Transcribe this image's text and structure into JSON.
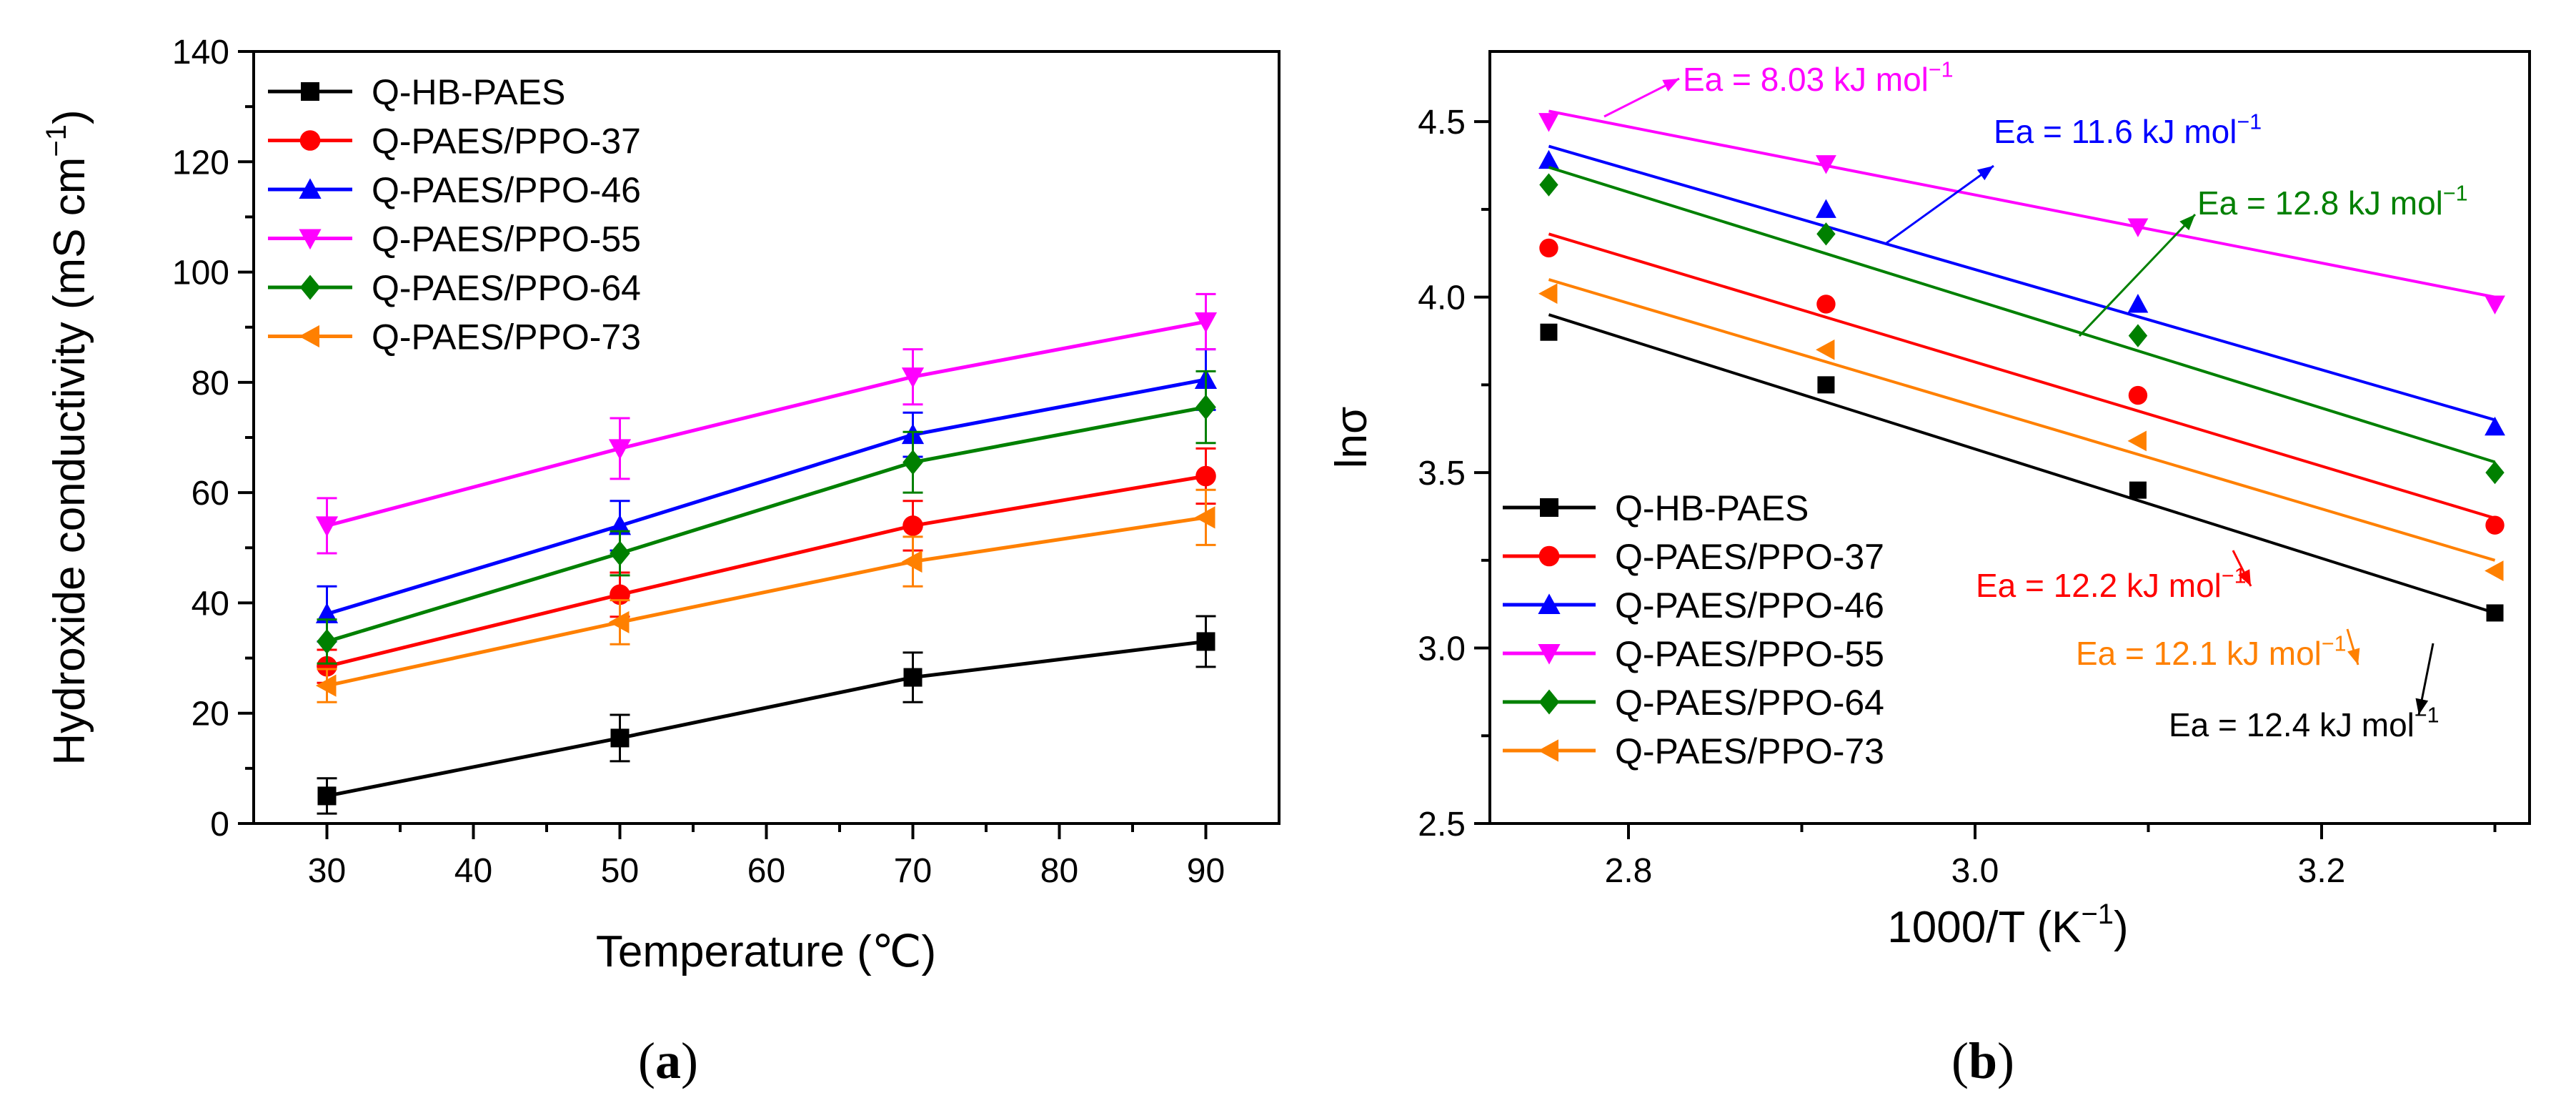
{
  "panels": {
    "a": {
      "label_open": "(",
      "label_letter": "a",
      "label_close": ")"
    },
    "b": {
      "label_open": "(",
      "label_letter": "b",
      "label_close": ")"
    }
  },
  "chart_data": [
    {
      "type": "line",
      "panel": "a",
      "xlabel": "Temperature (℃)",
      "ylabel": "Hydroxide conductivity (mS cm",
      "ylabel_sup": "−1",
      "ylabel_close": ")",
      "xlim": [
        25,
        95
      ],
      "ylim": [
        0,
        140
      ],
      "xticks": [
        30,
        40,
        50,
        60,
        70,
        80,
        90
      ],
      "yticks": [
        0,
        20,
        40,
        60,
        80,
        100,
        120,
        140
      ],
      "legend_position": "top-left",
      "x": [
        30,
        50,
        70,
        90
      ],
      "series": [
        {
          "name": "Q-HB-PAES",
          "color": "#000000",
          "marker": "square",
          "values": [
            5,
            15.5,
            26.5,
            33
          ],
          "errors": [
            3.2,
            4.2,
            4.5,
            4.6
          ]
        },
        {
          "name": "Q-PAES/PPO-37",
          "color": "#ff0000",
          "marker": "circle",
          "values": [
            28.5,
            41.5,
            54,
            63
          ],
          "errors": [
            3,
            4,
            4.5,
            5
          ]
        },
        {
          "name": "Q-PAES/PPO-46",
          "color": "#0000ff",
          "marker": "triangle-up",
          "values": [
            38,
            54,
            70.5,
            80.5
          ],
          "errors": [
            5,
            4.5,
            4,
            5.5
          ]
        },
        {
          "name": "Q-PAES/PPO-55",
          "color": "#ff00ff",
          "marker": "triangle-down",
          "values": [
            54,
            68,
            81,
            91
          ],
          "errors": [
            5,
            5.5,
            5,
            5
          ]
        },
        {
          "name": "Q-PAES/PPO-64",
          "color": "#008000",
          "marker": "diamond",
          "values": [
            33,
            49,
            65.5,
            75.5
          ],
          "errors": [
            4,
            4,
            5.5,
            6.5
          ]
        },
        {
          "name": "Q-PAES/PPO-73",
          "color": "#ff8000",
          "marker": "triangle-left",
          "values": [
            25,
            36.5,
            47.5,
            55.5
          ],
          "errors": [
            3,
            4,
            4.5,
            5
          ]
        }
      ]
    },
    {
      "type": "scatter",
      "panel": "b",
      "xlabel": "1000/T (K",
      "xlabel_sup": "−1",
      "xlabel_close": ")",
      "ylabel": "lnσ",
      "xlim": [
        2.72,
        3.32
      ],
      "ylim": [
        2.5,
        4.7
      ],
      "xticks": [
        2.8,
        3.0,
        3.2
      ],
      "xtick_labels": [
        "2.8",
        "3.0",
        "3.2"
      ],
      "yticks": [
        2.5,
        3.0,
        3.5,
        4.0,
        4.5
      ],
      "ytick_labels": [
        "2.5",
        "3.0",
        "3.5",
        "4.0",
        "4.5"
      ],
      "legend_position": "bottom-left",
      "x": [
        2.754,
        2.914,
        3.094,
        3.3
      ],
      "series": [
        {
          "name": "Q-HB-PAES",
          "color": "#000000",
          "marker": "square",
          "values": [
            3.9,
            3.75,
            3.45,
            3.1
          ],
          "fit": [
            3.95,
            3.1
          ]
        },
        {
          "name": "Q-PAES/PPO-37",
          "color": "#ff0000",
          "marker": "circle",
          "values": [
            4.14,
            3.98,
            3.72,
            3.35
          ],
          "fit": [
            4.18,
            3.37
          ]
        },
        {
          "name": "Q-PAES/PPO-46",
          "color": "#0000ff",
          "marker": "triangle-up",
          "values": [
            4.39,
            4.25,
            3.98,
            3.63
          ],
          "fit": [
            4.43,
            3.65
          ]
        },
        {
          "name": "Q-PAES/PPO-55",
          "color": "#ff00ff",
          "marker": "triangle-down",
          "values": [
            4.5,
            4.38,
            4.2,
            3.98
          ],
          "fit": [
            4.53,
            4.0
          ]
        },
        {
          "name": "Q-PAES/PPO-64",
          "color": "#008000",
          "marker": "diamond",
          "values": [
            4.32,
            4.18,
            3.89,
            3.5
          ],
          "fit": [
            4.37,
            3.53
          ]
        },
        {
          "name": "Q-PAES/PPO-73",
          "color": "#ff8000",
          "marker": "triangle-left",
          "values": [
            4.01,
            3.85,
            3.59,
            3.22
          ],
          "fit": [
            4.05,
            3.25
          ]
        }
      ],
      "annotations": [
        {
          "text": "Ea = 8.03 kJ mol",
          "sup": "−1",
          "color": "#ff00ff"
        },
        {
          "text": "Ea = 11.6 kJ mol",
          "sup": "−1",
          "color": "#0000ff"
        },
        {
          "text": "Ea = 12.8 kJ mol",
          "sup": "−1",
          "color": "#008000"
        },
        {
          "text": "Ea = 12.2 kJ mol",
          "sup": "−1",
          "color": "#ff0000"
        },
        {
          "text": "Ea = 12.1 kJ mol",
          "sup": "−1",
          "color": "#ff8000"
        },
        {
          "text": "Ea = 12.4 kJ mol",
          "sup": "−1",
          "color": "#000000"
        }
      ]
    }
  ]
}
